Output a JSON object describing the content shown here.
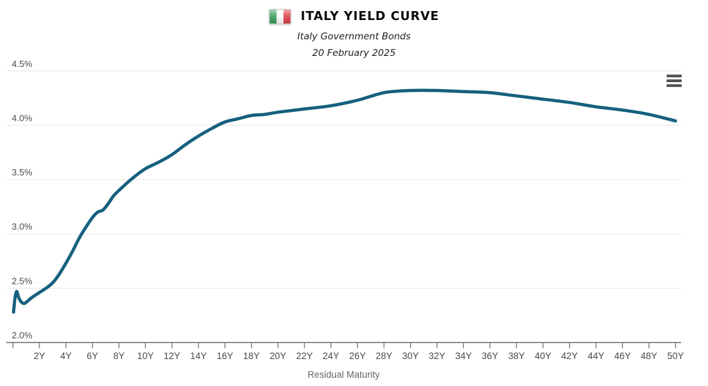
{
  "header": {
    "title": "ITALY YIELD CURVE",
    "subtitle": "Italy Government Bonds",
    "date": "20 February 2025",
    "flag_colors": [
      "#3d9e5d",
      "#ffffff",
      "#df4049"
    ]
  },
  "chart_data": {
    "type": "line",
    "title": "ITALY YIELD CURVE",
    "subtitle": [
      "Italy Government Bonds",
      "20 February 2025"
    ],
    "xlabel": "Residual Maturity",
    "ylabel": "",
    "x_unit": "years",
    "xlim": [
      -0.5,
      50.4
    ],
    "ylim": [
      2.0,
      4.5
    ],
    "grid": true,
    "legend": false,
    "line_color": "#15607e",
    "grid_color": "#e6e6e6",
    "axis_color": "#6f6f6f",
    "tick_label_color": "#4a4a4a",
    "y_ticks": [
      {
        "v": 2.0,
        "label": "2.0%"
      },
      {
        "v": 2.5,
        "label": "2.5%"
      },
      {
        "v": 3.0,
        "label": "3.0%"
      },
      {
        "v": 3.5,
        "label": "3.5%"
      },
      {
        "v": 4.0,
        "label": "4.0%"
      },
      {
        "v": 4.5,
        "label": "4.5%"
      }
    ],
    "x_ticks": [
      {
        "v": 0,
        "label": ""
      },
      {
        "v": 2,
        "label": "2Y"
      },
      {
        "v": 4,
        "label": "4Y"
      },
      {
        "v": 6,
        "label": "6Y"
      },
      {
        "v": 8,
        "label": "8Y"
      },
      {
        "v": 10,
        "label": "10Y"
      },
      {
        "v": 12,
        "label": "12Y"
      },
      {
        "v": 14,
        "label": "14Y"
      },
      {
        "v": 16,
        "label": "16Y"
      },
      {
        "v": 18,
        "label": "18Y"
      },
      {
        "v": 20,
        "label": "20Y"
      },
      {
        "v": 22,
        "label": "22Y"
      },
      {
        "v": 24,
        "label": "24Y"
      },
      {
        "v": 26,
        "label": "26Y"
      },
      {
        "v": 28,
        "label": "28Y"
      },
      {
        "v": 30,
        "label": "30Y"
      },
      {
        "v": 32,
        "label": "32Y"
      },
      {
        "v": 34,
        "label": "34Y"
      },
      {
        "v": 36,
        "label": "36Y"
      },
      {
        "v": 38,
        "label": "38Y"
      },
      {
        "v": 40,
        "label": "40Y"
      },
      {
        "v": 42,
        "label": "42Y"
      },
      {
        "v": 44,
        "label": "44Y"
      },
      {
        "v": 46,
        "label": "46Y"
      },
      {
        "v": 48,
        "label": "48Y"
      },
      {
        "v": 50,
        "label": "50Y"
      }
    ],
    "series": [
      {
        "name": "Italy Government Bond Yield",
        "color": "#15607e",
        "points": [
          [
            0.05,
            2.28
          ],
          [
            0.15,
            2.4
          ],
          [
            0.28,
            2.47
          ],
          [
            0.45,
            2.41
          ],
          [
            0.65,
            2.37
          ],
          [
            0.85,
            2.36
          ],
          [
            1.0,
            2.37
          ],
          [
            1.5,
            2.42
          ],
          [
            2.0,
            2.46
          ],
          [
            2.5,
            2.5
          ],
          [
            3.0,
            2.55
          ],
          [
            3.5,
            2.63
          ],
          [
            4.0,
            2.73
          ],
          [
            4.5,
            2.84
          ],
          [
            5.0,
            2.96
          ],
          [
            5.5,
            3.06
          ],
          [
            6.0,
            3.15
          ],
          [
            6.4,
            3.2
          ],
          [
            6.8,
            3.22
          ],
          [
            7.2,
            3.28
          ],
          [
            7.6,
            3.35
          ],
          [
            8.0,
            3.4
          ],
          [
            9.0,
            3.51
          ],
          [
            10.0,
            3.6
          ],
          [
            11.0,
            3.66
          ],
          [
            12.0,
            3.73
          ],
          [
            13.0,
            3.82
          ],
          [
            14.0,
            3.9
          ],
          [
            15.0,
            3.97
          ],
          [
            16.0,
            4.03
          ],
          [
            17.0,
            4.06
          ],
          [
            18.0,
            4.09
          ],
          [
            19.0,
            4.1
          ],
          [
            20.0,
            4.12
          ],
          [
            22.0,
            4.15
          ],
          [
            24.0,
            4.18
          ],
          [
            26.0,
            4.23
          ],
          [
            28.0,
            4.3
          ],
          [
            30.0,
            4.32
          ],
          [
            32.0,
            4.32
          ],
          [
            34.0,
            4.31
          ],
          [
            36.0,
            4.3
          ],
          [
            38.0,
            4.27
          ],
          [
            40.0,
            4.24
          ],
          [
            42.0,
            4.21
          ],
          [
            44.0,
            4.17
          ],
          [
            46.0,
            4.14
          ],
          [
            48.0,
            4.1
          ],
          [
            50.0,
            4.04
          ]
        ]
      }
    ]
  },
  "controls": {
    "menu_icon": "hamburger-menu-icon"
  }
}
